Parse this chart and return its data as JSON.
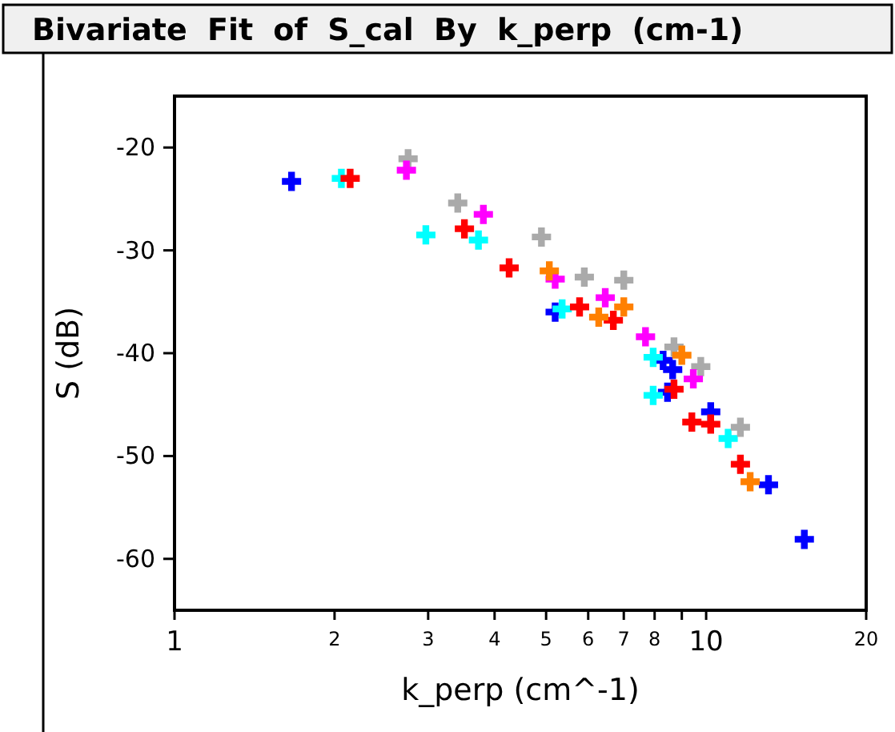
{
  "chart_data": {
    "type": "scatter",
    "title": "Bivariate Fit of S_cal By k_perp (cm-1)",
    "xlabel": "k_perp (cm^-1)",
    "ylabel": "S (dB)",
    "log": "x",
    "xlim": [
      1,
      20
    ],
    "xticks": [
      1,
      2,
      3,
      4,
      5,
      6,
      7,
      8,
      {
        "value": 9,
        "label": null
      },
      10,
      20
    ],
    "ylim": [
      -65,
      -15
    ],
    "yticks": [
      -20,
      -30,
      -40,
      -50,
      -60
    ],
    "marker": "cross",
    "series": [
      {
        "color": "#0000ff",
        "x": [
          1.66,
          5.2,
          8.3,
          8.65,
          8.46,
          10.2,
          13.1,
          15.3
        ],
        "values": [
          -23.3,
          -36.0,
          -40.7,
          -41.6,
          -43.8,
          -45.7,
          -52.8,
          -58.1
        ]
      },
      {
        "color": "#00ffff",
        "x": [
          2.06,
          2.97,
          3.73,
          5.36,
          7.95,
          7.95,
          11.0
        ],
        "values": [
          -23.0,
          -28.5,
          -29.0,
          -35.7,
          -40.4,
          -44.1,
          -48.3
        ]
      },
      {
        "color": "#ff0000",
        "x": [
          2.14,
          3.51,
          4.26,
          5.78,
          6.69,
          8.7,
          9.4,
          10.2,
          11.6
        ],
        "values": [
          -23.0,
          -27.9,
          -31.7,
          -35.5,
          -36.8,
          -43.5,
          -46.7,
          -46.9,
          -50.8
        ]
      },
      {
        "color": "#aaaaaa",
        "x": [
          2.75,
          3.41,
          4.9,
          5.9,
          7.0,
          8.7,
          9.77,
          11.6
        ],
        "values": [
          -21.1,
          -25.4,
          -28.7,
          -32.6,
          -32.9,
          -39.4,
          -41.3,
          -47.2
        ]
      },
      {
        "color": "#ff00ff",
        "x": [
          2.73,
          3.81,
          5.2,
          6.46,
          7.69,
          9.46
        ],
        "values": [
          -22.2,
          -26.5,
          -32.8,
          -34.6,
          -38.4,
          -42.5
        ]
      },
      {
        "color": "#ff8000",
        "x": [
          5.07,
          7.0,
          6.28,
          9.0,
          12.1
        ],
        "values": [
          -32.0,
          -35.5,
          -36.5,
          -40.2,
          -52.5
        ]
      }
    ]
  }
}
